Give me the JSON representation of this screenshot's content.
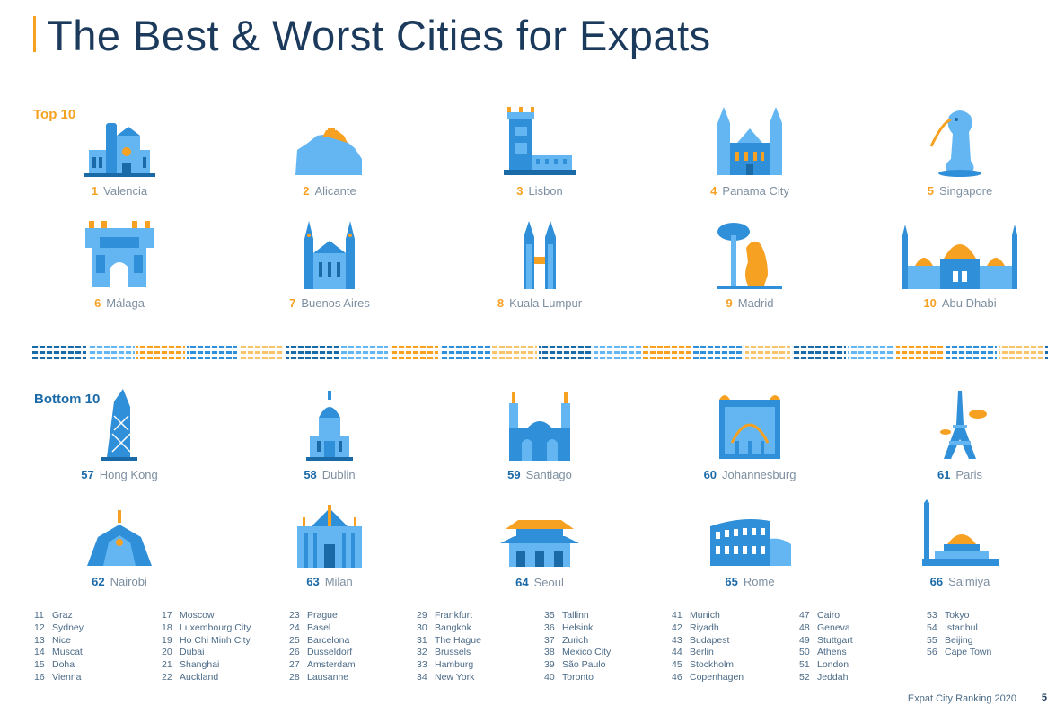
{
  "title": "The Best & Worst Cities for Expats",
  "top_label": "Top 10",
  "bottom_label": "Bottom 10",
  "colors": {
    "dark_blue": "#1b3a5c",
    "blue": "#2f8fd8",
    "light_blue": "#63b6f1",
    "orange": "#f7a123"
  },
  "top10": [
    {
      "rank": "1",
      "city": "Valencia",
      "icon": "cathedral-icon"
    },
    {
      "rank": "2",
      "city": "Alicante",
      "icon": "castle-hill-icon"
    },
    {
      "rank": "3",
      "city": "Lisbon",
      "icon": "belem-tower-icon"
    },
    {
      "rank": "4",
      "city": "Panama City",
      "icon": "twin-tower-church-icon"
    },
    {
      "rank": "5",
      "city": "Singapore",
      "icon": "merlion-icon"
    },
    {
      "rank": "6",
      "city": "Málaga",
      "icon": "fortress-gate-icon"
    },
    {
      "rank": "7",
      "city": "Buenos Aires",
      "icon": "gothic-church-icon"
    },
    {
      "rank": "8",
      "city": "Kuala Lumpur",
      "icon": "petronas-towers-icon"
    },
    {
      "rank": "9",
      "city": "Madrid",
      "icon": "bear-tree-statue-icon"
    },
    {
      "rank": "10",
      "city": "Abu Dhabi",
      "icon": "grand-mosque-icon"
    }
  ],
  "bottom10": [
    {
      "rank": "57",
      "city": "Hong Kong",
      "icon": "skyscraper-icon"
    },
    {
      "rank": "58",
      "city": "Dublin",
      "icon": "domed-building-icon"
    },
    {
      "rank": "59",
      "city": "Santiago",
      "icon": "cathedral-towers-icon"
    },
    {
      "rank": "60",
      "city": "Johannesburg",
      "icon": "arched-hall-icon"
    },
    {
      "rank": "61",
      "city": "Paris",
      "icon": "eiffel-tower-icon"
    },
    {
      "rank": "62",
      "city": "Nairobi",
      "icon": "conference-centre-icon"
    },
    {
      "rank": "63",
      "city": "Milan",
      "icon": "milan-cathedral-icon"
    },
    {
      "rank": "64",
      "city": "Seoul",
      "icon": "pagoda-gate-icon"
    },
    {
      "rank": "65",
      "city": "Rome",
      "icon": "colosseum-icon"
    },
    {
      "rank": "66",
      "city": "Salmiya",
      "icon": "tower-dome-icon"
    }
  ],
  "rank_columns": [
    [
      [
        "11",
        "Graz"
      ],
      [
        "12",
        "Sydney"
      ],
      [
        "13",
        "Nice"
      ],
      [
        "14",
        "Muscat"
      ],
      [
        "15",
        "Doha"
      ],
      [
        "16",
        "Vienna"
      ]
    ],
    [
      [
        "17",
        "Moscow"
      ],
      [
        "18",
        "Luxembourg City"
      ],
      [
        "19",
        "Ho Chi Minh City"
      ],
      [
        "20",
        "Dubai"
      ],
      [
        "21",
        "Shanghai"
      ],
      [
        "22",
        "Auckland"
      ]
    ],
    [
      [
        "23",
        "Prague"
      ],
      [
        "24",
        "Basel"
      ],
      [
        "25",
        "Barcelona"
      ],
      [
        "26",
        "Dusseldorf"
      ],
      [
        "27",
        "Amsterdam"
      ],
      [
        "28",
        "Lausanne"
      ]
    ],
    [
      [
        "29",
        "Frankfurt"
      ],
      [
        "30",
        "Bangkok"
      ],
      [
        "31",
        "The Hague"
      ],
      [
        "32",
        "Brussels"
      ],
      [
        "33",
        "Hamburg"
      ],
      [
        "34",
        "New York"
      ]
    ],
    [
      [
        "35",
        "Tallinn"
      ],
      [
        "36",
        "Helsinki"
      ],
      [
        "37",
        "Zurich"
      ],
      [
        "38",
        "Mexico City"
      ],
      [
        "39",
        "São Paulo"
      ],
      [
        "40",
        "Toronto"
      ]
    ],
    [
      [
        "41",
        "Munich"
      ],
      [
        "42",
        "Riyadh"
      ],
      [
        "43",
        "Budapest"
      ],
      [
        "44",
        "Berlin"
      ],
      [
        "45",
        "Stockholm"
      ],
      [
        "46",
        "Copenhagen"
      ]
    ],
    [
      [
        "47",
        "Cairo"
      ],
      [
        "48",
        "Geneva"
      ],
      [
        "49",
        "Stuttgart"
      ],
      [
        "50",
        "Athens"
      ],
      [
        "51",
        "London"
      ],
      [
        "52",
        "Jeddah"
      ]
    ],
    [
      [
        "53",
        "Tokyo"
      ],
      [
        "54",
        "Istanbul"
      ],
      [
        "55",
        "Beijing"
      ],
      [
        "56",
        "Cape Town"
      ]
    ]
  ],
  "footer": "Expat City Ranking 2020",
  "page_number": "5"
}
